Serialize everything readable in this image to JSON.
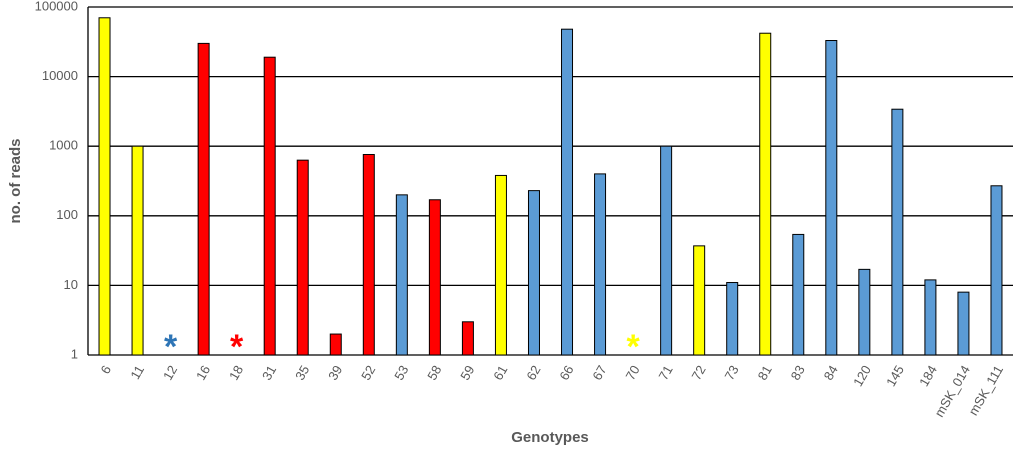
{
  "chart_data": {
    "type": "bar",
    "x_label": "Genotypes",
    "y_label": "no. of reads",
    "categories": [
      "6",
      "11",
      "12",
      "16",
      "18",
      "31",
      "35",
      "39",
      "52",
      "53",
      "58",
      "59",
      "61",
      "62",
      "66",
      "67",
      "70",
      "71",
      "72",
      "73",
      "81",
      "83",
      "84",
      "120",
      "145",
      "184",
      "mSK_014",
      "mSK_111"
    ],
    "values": [
      70000,
      1000,
      null,
      30000,
      null,
      19000,
      630,
      2,
      760,
      200,
      170,
      3,
      380,
      230,
      48000,
      400,
      null,
      1000,
      37,
      11,
      42000,
      54,
      33000,
      17,
      3400,
      12,
      8,
      270
    ],
    "colors": [
      "#ffff00",
      "#ffff00",
      "#2e75b6",
      "#ff0000",
      "#ff0000",
      "#ff0000",
      "#ff0000",
      "#ff0000",
      "#ff0000",
      "#5b9bd5",
      "#ff0000",
      "#ff0000",
      "#ffff00",
      "#5b9bd5",
      "#5b9bd5",
      "#5b9bd5",
      "#ffff00",
      "#5b9bd5",
      "#ffff00",
      "#5b9bd5",
      "#ffff00",
      "#5b9bd5",
      "#5b9bd5",
      "#5b9bd5",
      "#5b9bd5",
      "#5b9bd5",
      "#5b9bd5",
      "#5b9bd5"
    ],
    "missing_marker": "*",
    "log_scale": true,
    "grid": true,
    "ylim": [
      1,
      100000
    ],
    "yticks": [
      1,
      10,
      100,
      1000,
      10000,
      100000
    ]
  }
}
